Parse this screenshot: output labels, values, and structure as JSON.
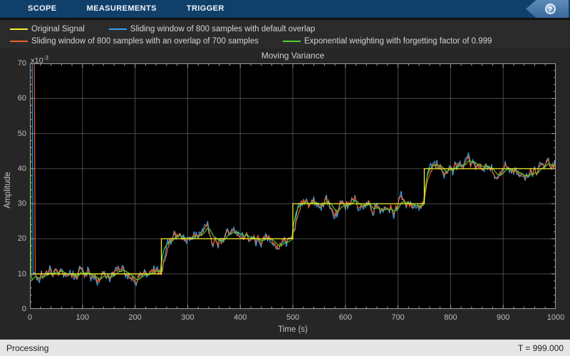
{
  "tabs": {
    "items": [
      {
        "label": "SCOPE"
      },
      {
        "label": "MEASUREMENTS"
      },
      {
        "label": "TRIGGER"
      }
    ],
    "help_glyph": "?"
  },
  "chart_data": {
    "type": "line",
    "title": "Moving Variance",
    "xlabel": "Time (s)",
    "ylabel": "Amplitude",
    "y_unit_multiplier": {
      "base": "x10",
      "exponent": "-3"
    },
    "xlim": [
      0,
      1000
    ],
    "ylim": [
      0,
      70
    ],
    "xticks": [
      0,
      100,
      200,
      300,
      400,
      500,
      600,
      700,
      800,
      900,
      1000
    ],
    "yticks": [
      0,
      10,
      20,
      30,
      40,
      50,
      60,
      70
    ],
    "x_minor_step": 20,
    "y_minor_step": 2,
    "grid": true,
    "legend_position": "top-outside",
    "plot_background": "#000000",
    "grid_color": "#4a4a4a",
    "axis_color": "#9e9e9e",
    "true_variance_steps": {
      "times": [
        0,
        250,
        500,
        750,
        1000
      ],
      "levels": [
        10,
        20,
        30,
        40
      ]
    },
    "series": [
      {
        "name": "Original Signal",
        "color": "#f6f12f",
        "type": "true-step"
      },
      {
        "name": "Sliding window of 800 samples with default overlap",
        "color": "#38a0ea",
        "type": "noisy-estimate",
        "startup_spike_end_time": 6,
        "noise_amp": 2.4,
        "step_response_lag": 12
      },
      {
        "name": "Sliding window of 800 samples with an overlap of 700 samples",
        "color": "#e8632c",
        "type": "noisy-estimate",
        "startup_spike_end_time": 10,
        "noise_amp": 1.9,
        "step_response_lag": 16
      },
      {
        "name": "Exponential weighting with forgetting factor of 0.999",
        "color": "#53cf32",
        "type": "smoothed-estimate",
        "startup_spike_end_time": 2,
        "noise_amp": 1.4,
        "step_response_lag": 22
      }
    ]
  },
  "status_bar": {
    "left": "Processing",
    "right": "T = 999.000"
  }
}
